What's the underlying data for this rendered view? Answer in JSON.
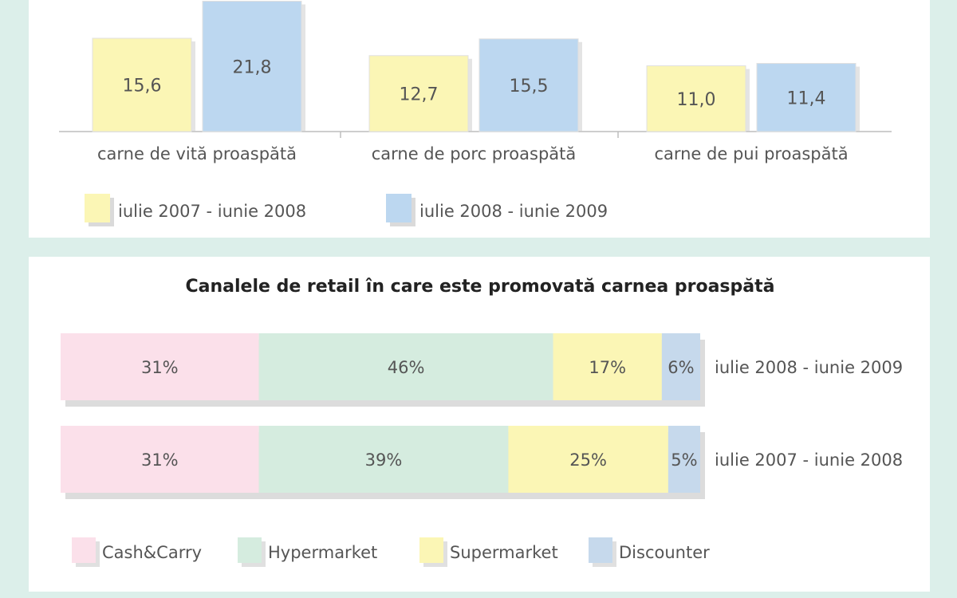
{
  "chart_data": [
    {
      "type": "bar",
      "categories": [
        "carne de vită proaspătă",
        "carne de porc proaspătă",
        "carne de pui proaspătă"
      ],
      "series": [
        {
          "name": "iulie 2007 - iunie 2008",
          "values": [
            15.6,
            12.7,
            11.0
          ],
          "labels": [
            "15,6",
            "12,7",
            "11,0"
          ],
          "color": "#fbf6b5"
        },
        {
          "name": "iulie 2008 - iunie 2009",
          "values": [
            21.8,
            15.5,
            11.4
          ],
          "labels": [
            "21,8",
            "15,5",
            "11,4"
          ],
          "color": "#bcd7f0"
        }
      ],
      "ylim": [
        0,
        24
      ],
      "legend_position": "bottom-left"
    },
    {
      "type": "bar",
      "orientation": "horizontal",
      "stacked": true,
      "title": "Canalele de retail în care este promovată carnea proaspătă",
      "categories": [
        "iulie 2008 - iunie 2009",
        "iulie 2007 - iunie 2008"
      ],
      "series": [
        {
          "name": "Cash&Carry",
          "values": [
            31,
            31
          ],
          "labels": [
            "31%",
            "31%"
          ],
          "color": "#fbe0ea"
        },
        {
          "name": "Hypermarket",
          "values": [
            46,
            39
          ],
          "labels": [
            "46%",
            "39%"
          ],
          "color": "#d5ecdf"
        },
        {
          "name": "Supermarket",
          "values": [
            17,
            25
          ],
          "labels": [
            "17%",
            "25%"
          ],
          "color": "#fbf6b5"
        },
        {
          "name": "Discounter",
          "values": [
            6,
            5
          ],
          "labels": [
            "6%",
            "5%"
          ],
          "color": "#c6d9ec"
        }
      ],
      "xlim": [
        0,
        100
      ],
      "legend_position": "bottom-left"
    }
  ]
}
